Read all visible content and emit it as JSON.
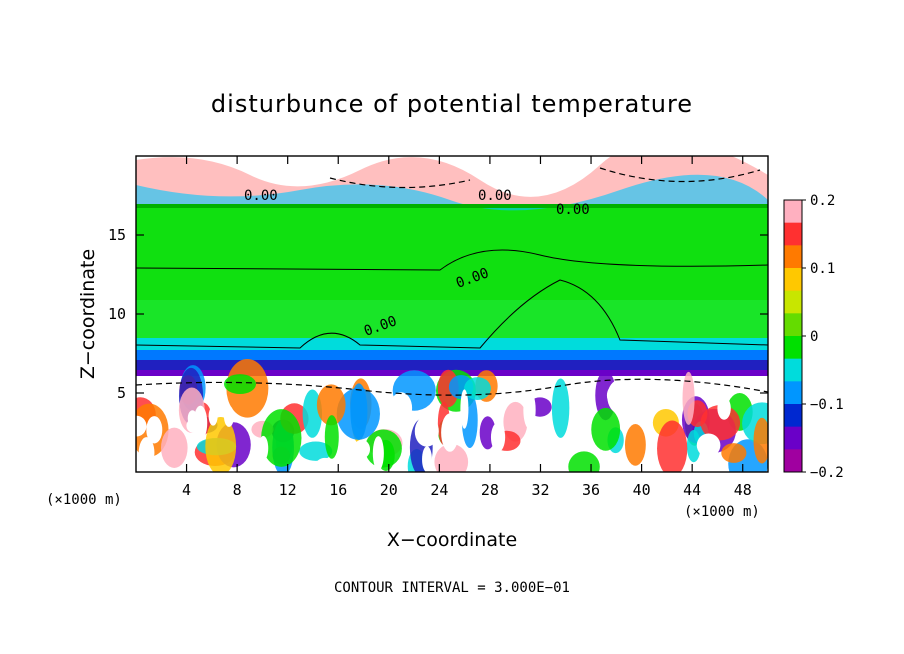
{
  "chart_data": {
    "type": "heatmap",
    "title": "disturbunce of potential temperature",
    "xlabel": "X−coordinate",
    "ylabel": "Z−coordinate",
    "x_unit_label": "(×1000 m)",
    "x_unit_label_right": "(×1000 m)",
    "xlim": [
      0,
      50
    ],
    "ylim": [
      0,
      20
    ],
    "x_ticks": [
      4,
      8,
      12,
      16,
      20,
      24,
      28,
      32,
      36,
      40,
      44,
      48
    ],
    "y_ticks": [
      5,
      10,
      15
    ],
    "colorbar": {
      "min": -0.2,
      "max": 0.2,
      "ticks": [
        0.2,
        0.1,
        0,
        -0.1,
        -0.2
      ],
      "tick_labels": [
        "0.2",
        "0.1",
        "0",
        "−0.1",
        "−0.2"
      ],
      "colors": [
        "#ffb0c0",
        "#ff3030",
        "#ff7a00",
        "#ffc800",
        "#c8e600",
        "#64dc00",
        "#00e000",
        "#00dcdc",
        "#0096ff",
        "#0028d0",
        "#6a00c8",
        "#a000a0"
      ]
    },
    "contour_labels": [
      "0.00",
      "0.00",
      "0.00",
      "0.00",
      "0.00"
    ],
    "footer": "CONTOUR INTERVAL = 3.000E−01",
    "grid": false,
    "legend": "colorbar-right"
  }
}
